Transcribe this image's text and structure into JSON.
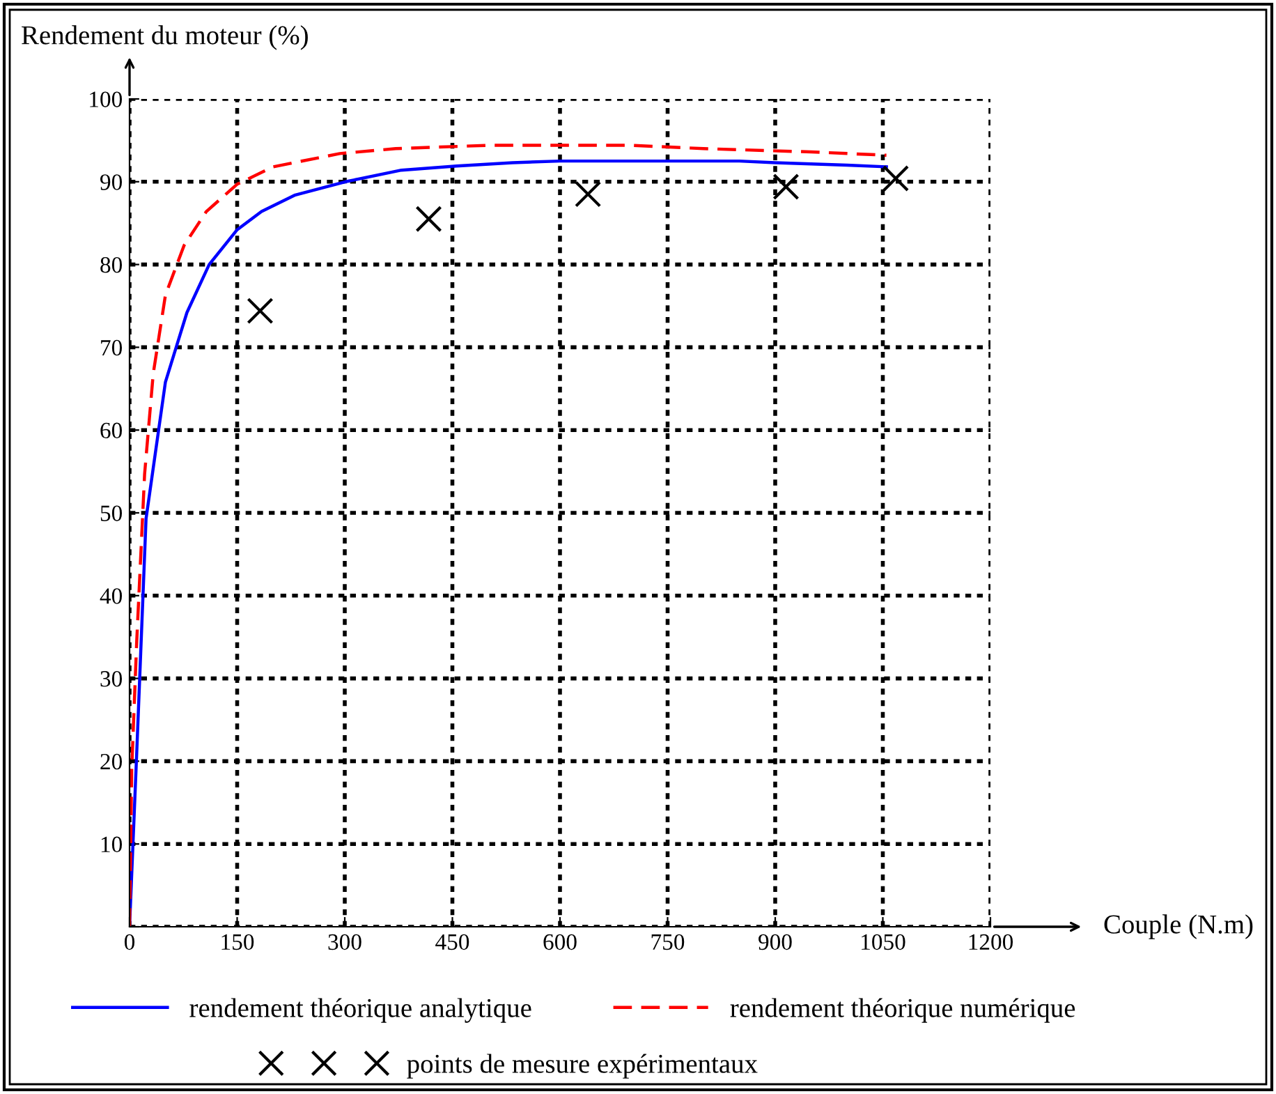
{
  "chart_data": {
    "type": "line",
    "xlabel": "Couple (N.m)",
    "ylabel": "Rendement du moteur (%)",
    "xlim": [
      0,
      1200
    ],
    "ylim": [
      0,
      100
    ],
    "xticks": [
      0,
      150,
      300,
      450,
      600,
      750,
      900,
      1050,
      1200
    ],
    "yticks": [
      {
        "value": 0,
        "label": null
      },
      10,
      20,
      30,
      40,
      50,
      60,
      70,
      80,
      90,
      100
    ],
    "grid": true,
    "legend": "bottom",
    "series": [
      {
        "name": "rendement théorique analytique",
        "color": "#0000ff",
        "line_style": "solid",
        "marker": "none",
        "x": [
          0,
          10,
          23,
          50,
          80,
          111,
          150,
          184,
          231,
          301,
          379,
          456,
          534,
          600,
          700,
          850,
          900,
          1000,
          1055
        ],
        "values": [
          0,
          21,
          49.3,
          65.8,
          74.2,
          80,
          84.2,
          86.4,
          88.4,
          90,
          91.4,
          91.9,
          92.3,
          92.5,
          92.5,
          92.5,
          92.3,
          92,
          91.8
        ]
      },
      {
        "name": "rendement théorique numérique",
        "color": "#ff0000",
        "line_style": "dashed",
        "marker": "none",
        "x": [
          0,
          3,
          10,
          21,
          33,
          50,
          76,
          107,
          150,
          200,
          293,
          371,
          500,
          600,
          700,
          800,
          950,
          1055
        ],
        "values": [
          0,
          19,
          34.5,
          54.7,
          66.8,
          76.3,
          82.3,
          86.4,
          89.7,
          91.8,
          93.4,
          94,
          94.4,
          94.4,
          94.4,
          94,
          93.6,
          93.2
        ]
      },
      {
        "name": "points de mesure expérimentaux",
        "type": "scatter",
        "color": "#000000",
        "marker": "cross",
        "x": [
          182,
          417,
          639,
          915,
          1068
        ],
        "values": [
          74.4,
          85.5,
          88.5,
          89.4,
          90.4
        ]
      }
    ]
  }
}
